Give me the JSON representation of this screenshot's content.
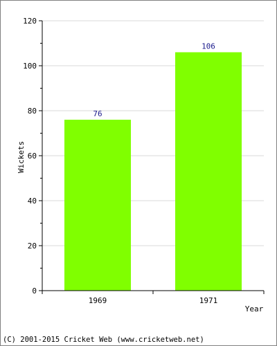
{
  "chart_data": {
    "type": "bar",
    "categories": [
      "1969",
      "1971"
    ],
    "values": [
      76,
      106
    ],
    "data_labels": [
      "76",
      "106"
    ],
    "xlabel": "Year",
    "ylabel": "Wickets",
    "ylim": [
      0,
      120
    ],
    "yticks": [
      0,
      20,
      40,
      60,
      80,
      100,
      120
    ],
    "grid": true,
    "colors": {
      "bar": "#80ff00",
      "value_label": "#1a1a8c",
      "grid": "#d9d9d9",
      "axis": "#000000"
    }
  },
  "footer": {
    "text": "(C) 2001-2015 Cricket Web (www.cricketweb.net)"
  }
}
